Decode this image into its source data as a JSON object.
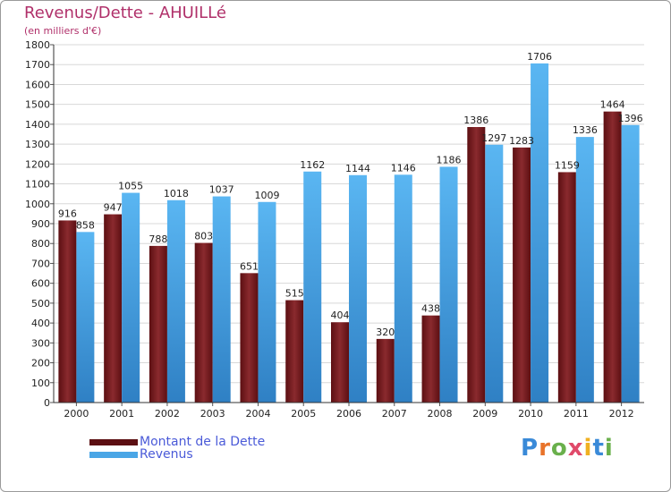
{
  "title": "Revenus/Dette - AHUILLé",
  "subtitle": "(en milliers d'€)",
  "brand": "Proxiti",
  "colors": {
    "dette": "#7a1a1e",
    "revenus": "#4aa6e6",
    "title": "#b0306a",
    "legend_text": "#4a5ad8"
  },
  "chart_data": {
    "type": "bar",
    "title": "Revenus/Dette - AHUILLé",
    "subtitle": "(en milliers d'€)",
    "xlabel": "",
    "ylabel": "",
    "ylim": [
      0,
      1800
    ],
    "yticks": [
      0,
      100,
      200,
      300,
      400,
      500,
      600,
      700,
      800,
      900,
      1000,
      1100,
      1200,
      1300,
      1400,
      1500,
      1600,
      1700,
      1800
    ],
    "grid": true,
    "legend_position": "bottom-left",
    "categories": [
      "2000",
      "2001",
      "2002",
      "2003",
      "2004",
      "2005",
      "2006",
      "2007",
      "2008",
      "2009",
      "2010",
      "2011",
      "2012"
    ],
    "series": [
      {
        "name": "Montant de la Dette",
        "color": "#7a1a1e",
        "values": [
          916,
          947,
          788,
          803,
          651,
          515,
          404,
          320,
          438,
          1386,
          1283,
          1159,
          1464
        ]
      },
      {
        "name": "Revenus",
        "color": "#4aa6e6",
        "values": [
          858,
          1055,
          1018,
          1037,
          1009,
          1162,
          1144,
          1146,
          1186,
          1297,
          1706,
          1336,
          1396
        ]
      }
    ]
  }
}
